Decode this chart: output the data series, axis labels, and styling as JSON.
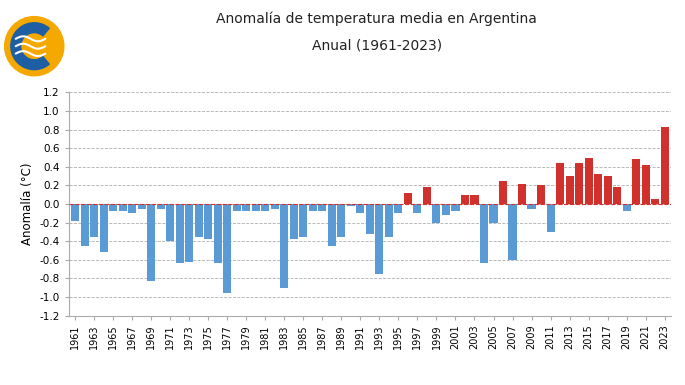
{
  "years": [
    1961,
    1962,
    1963,
    1964,
    1965,
    1966,
    1967,
    1968,
    1969,
    1970,
    1971,
    1972,
    1973,
    1974,
    1975,
    1976,
    1977,
    1978,
    1979,
    1980,
    1981,
    1982,
    1983,
    1984,
    1985,
    1986,
    1987,
    1988,
    1989,
    1990,
    1991,
    1992,
    1993,
    1994,
    1995,
    1996,
    1997,
    1998,
    1999,
    2000,
    2001,
    2002,
    2003,
    2004,
    2005,
    2006,
    2007,
    2008,
    2009,
    2010,
    2011,
    2012,
    2013,
    2014,
    2015,
    2016,
    2017,
    2018,
    2019,
    2020,
    2021,
    2022,
    2023
  ],
  "values": [
    -0.18,
    -0.45,
    -0.35,
    -0.52,
    -0.08,
    -0.08,
    -0.1,
    -0.05,
    -0.83,
    -0.05,
    -0.4,
    -0.63,
    -0.62,
    -0.35,
    -0.38,
    -0.63,
    -0.96,
    -0.07,
    -0.07,
    -0.08,
    -0.08,
    -0.05,
    -0.9,
    -0.38,
    -0.35,
    -0.07,
    -0.07,
    -0.45,
    -0.35,
    -0.02,
    -0.1,
    -0.32,
    -0.75,
    -0.35,
    -0.1,
    0.12,
    -0.1,
    0.18,
    -0.2,
    -0.12,
    -0.08,
    0.1,
    0.1,
    -0.63,
    -0.2,
    0.25,
    -0.6,
    0.22,
    -0.05,
    0.2,
    -0.3,
    0.44,
    0.3,
    0.44,
    0.5,
    0.32,
    0.3,
    0.18,
    -0.08,
    0.48,
    0.42,
    0.05,
    0.83
  ],
  "title_line1": "Anomalía de temperatura media en Argentina",
  "title_line2": "Anual (1961-2023)",
  "ylabel": "Anomalía (°C)",
  "ylim": [
    -1.2,
    1.2
  ],
  "yticks": [
    -1.2,
    -1.0,
    -0.8,
    -0.6,
    -0.4,
    -0.2,
    0.0,
    0.2,
    0.4,
    0.6,
    0.8,
    1.0,
    1.2
  ],
  "color_positive": "#d0312d",
  "color_negative": "#5b9bd5",
  "color_zero_line": "#d0312d",
  "background_color": "#ffffff",
  "grid_color": "#b0b0b0",
  "logo_orange": "#f5a800",
  "logo_blue": "#1e5fa4",
  "logo_white": "#ffffff"
}
